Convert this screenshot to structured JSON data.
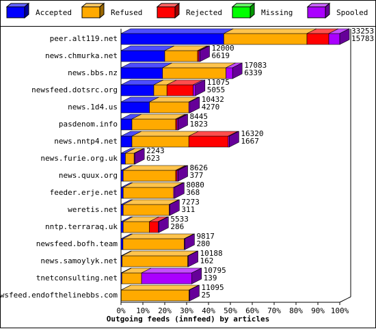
{
  "chart_data": {
    "type": "stacked-bar-3d",
    "title": "Outgoing feeds (innfeed) by articles",
    "categories": [
      "peer.alt119.net",
      "news.chmurka.net",
      "news.bbs.nz",
      "newsfeed.dotsrc.org",
      "news.1d4.us",
      "pasdenom.info",
      "news.nntp4.net",
      "news.furie.org.uk",
      "news.quux.org",
      "feeder.erje.net",
      "weretis.net",
      "nntp.terraraq.uk",
      "newsfeed.bofh.team",
      "news.samoylyk.net",
      "tnetconsulting.net",
      "newsfeed.endofthelinebbs.com"
    ],
    "series": [
      {
        "name": "Accepted",
        "color": "#0000ff",
        "values": [
          47,
          20,
          19,
          15,
          13,
          5,
          5,
          2,
          1,
          1,
          1,
          1,
          0.9,
          0.5,
          0.4,
          0.1
        ]
      },
      {
        "name": "Refused",
        "color": "#ffaa00",
        "values": [
          38,
          15,
          29,
          6,
          18,
          20,
          26,
          4,
          24,
          23,
          21,
          12,
          28,
          30,
          9,
          31
        ]
      },
      {
        "name": "Rejected",
        "color": "#ff0000",
        "values": [
          10,
          0.6,
          0,
          12,
          0,
          0.6,
          18,
          0,
          0.6,
          0,
          0,
          4,
          0,
          0,
          0,
          0
        ]
      },
      {
        "name": "Missing",
        "color": "#00ff00",
        "values": [
          0,
          0,
          0,
          0,
          0,
          0,
          0,
          0,
          0,
          0,
          0,
          0,
          0,
          0,
          0,
          0
        ]
      },
      {
        "name": "Spooled",
        "color": "#aa00ff",
        "values": [
          5,
          0.5,
          3,
          1,
          0.5,
          0.5,
          0.5,
          0.3,
          0.5,
          0.5,
          0.3,
          0.3,
          0.3,
          0.3,
          23,
          0.3
        ]
      }
    ],
    "offered": [
      33253,
      12000,
      17083,
      11075,
      10432,
      8445,
      16320,
      2243,
      8626,
      8080,
      7273,
      5533,
      9817,
      10188,
      10795,
      11095
    ],
    "accepted": [
      15783,
      6619,
      6339,
      5055,
      4270,
      1823,
      1667,
      623,
      377,
      368,
      311,
      286,
      280,
      162,
      139,
      25
    ],
    "xlim": [
      0,
      100
    ],
    "xticks": [
      {
        "value": 0,
        "label": "0%"
      },
      {
        "value": 10,
        "label": "10%"
      },
      {
        "value": 20,
        "label": "20%"
      },
      {
        "value": 30,
        "label": "30%"
      },
      {
        "value": 40,
        "label": "40%"
      },
      {
        "value": 50,
        "label": "50%"
      },
      {
        "value": 60,
        "label": "60%"
      },
      {
        "value": 70,
        "label": "70%"
      },
      {
        "value": 80,
        "label": "80%"
      },
      {
        "value": 90,
        "label": "90%"
      },
      {
        "value": 100,
        "label": "100%"
      }
    ]
  }
}
